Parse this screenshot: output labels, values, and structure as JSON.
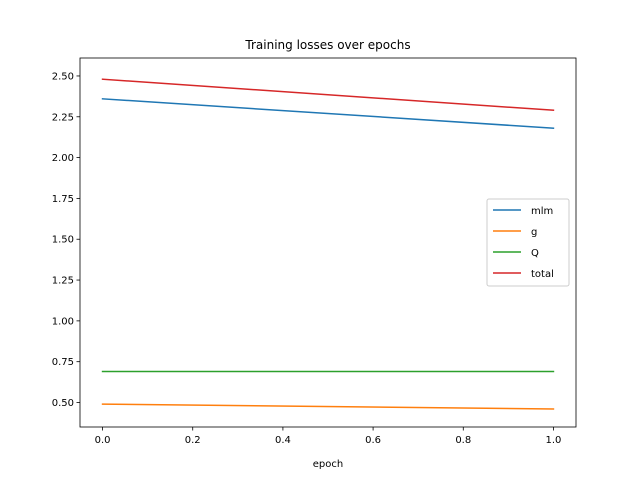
{
  "chart_data": {
    "type": "line",
    "title": "Training losses over epochs",
    "xlabel": "epoch",
    "ylabel": "",
    "x": [
      0.0,
      1.0
    ],
    "xlim": [
      -0.05,
      1.05
    ],
    "ylim": [
      0.35,
      2.61
    ],
    "xticks": [
      0.0,
      0.2,
      0.4,
      0.6,
      0.8,
      1.0
    ],
    "xtick_labels": [
      "0.0",
      "0.2",
      "0.4",
      "0.6",
      "0.8",
      "1.0"
    ],
    "yticks": [
      0.5,
      0.75,
      1.0,
      1.25,
      1.5,
      1.75,
      2.0,
      2.25,
      2.5
    ],
    "ytick_labels": [
      "0.50",
      "0.75",
      "1.00",
      "1.25",
      "1.50",
      "1.75",
      "2.00",
      "2.25",
      "2.50"
    ],
    "grid": false,
    "legend_position": "center-right",
    "series": [
      {
        "name": "mlm",
        "color": "#1f77b4",
        "values": [
          2.36,
          2.18
        ]
      },
      {
        "name": "g",
        "color": "#ff7f0e",
        "values": [
          0.49,
          0.46
        ]
      },
      {
        "name": "Q",
        "color": "#2ca02c",
        "values": [
          0.69,
          0.69
        ]
      },
      {
        "name": "total",
        "color": "#d62728",
        "values": [
          2.48,
          2.29
        ]
      }
    ]
  }
}
